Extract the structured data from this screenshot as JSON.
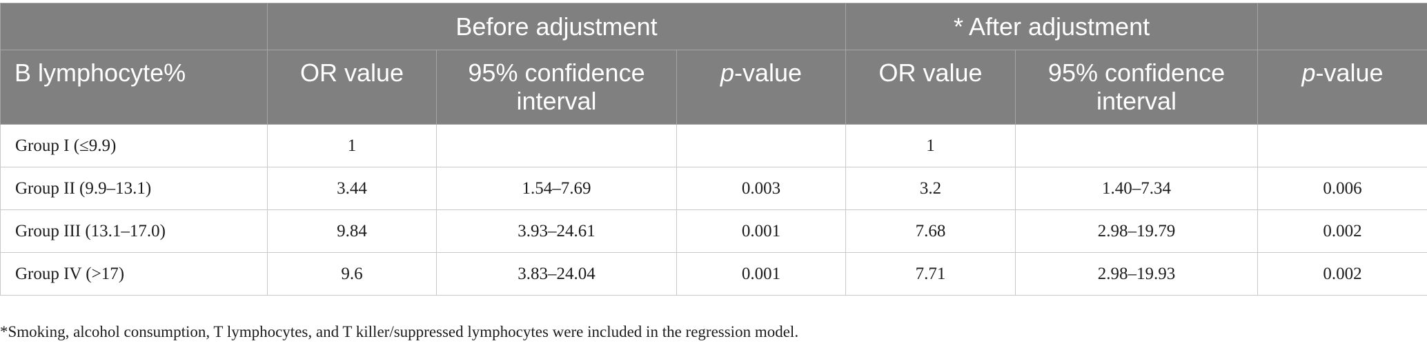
{
  "table": {
    "group_headers": {
      "before": "Before adjustment",
      "after": "* After adjustment"
    },
    "columns": {
      "category": "B lymphocyte%",
      "or_value": "OR value",
      "ci": "95% confidence interval",
      "p_prefix": "p",
      "p_suffix": "-value"
    },
    "rows": [
      {
        "group": "Group I (≤9.9)",
        "or_before": "1",
        "ci_before": "",
        "p_before": "",
        "or_after": "1",
        "ci_after": "",
        "p_after": ""
      },
      {
        "group": "Group II (9.9–13.1)",
        "or_before": "3.44",
        "ci_before": "1.54–7.69",
        "p_before": "0.003",
        "or_after": "3.2",
        "ci_after": "1.40–7.34",
        "p_after": "0.006"
      },
      {
        "group": "Group III (13.1–17.0)",
        "or_before": "9.84",
        "ci_before": "3.93–24.61",
        "p_before": "0.001",
        "or_after": "7.68",
        "ci_after": "2.98–19.79",
        "p_after": "0.002"
      },
      {
        "group": "Group IV (>17)",
        "or_before": "9.6",
        "ci_before": "3.83–24.04",
        "p_before": "0.001",
        "or_after": "7.71",
        "ci_after": "2.98–19.93",
        "p_after": "0.002"
      }
    ]
  },
  "footnote": "*Smoking, alcohol consumption, T lymphocytes, and T killer/suppressed lymphocytes were included in the regression model."
}
